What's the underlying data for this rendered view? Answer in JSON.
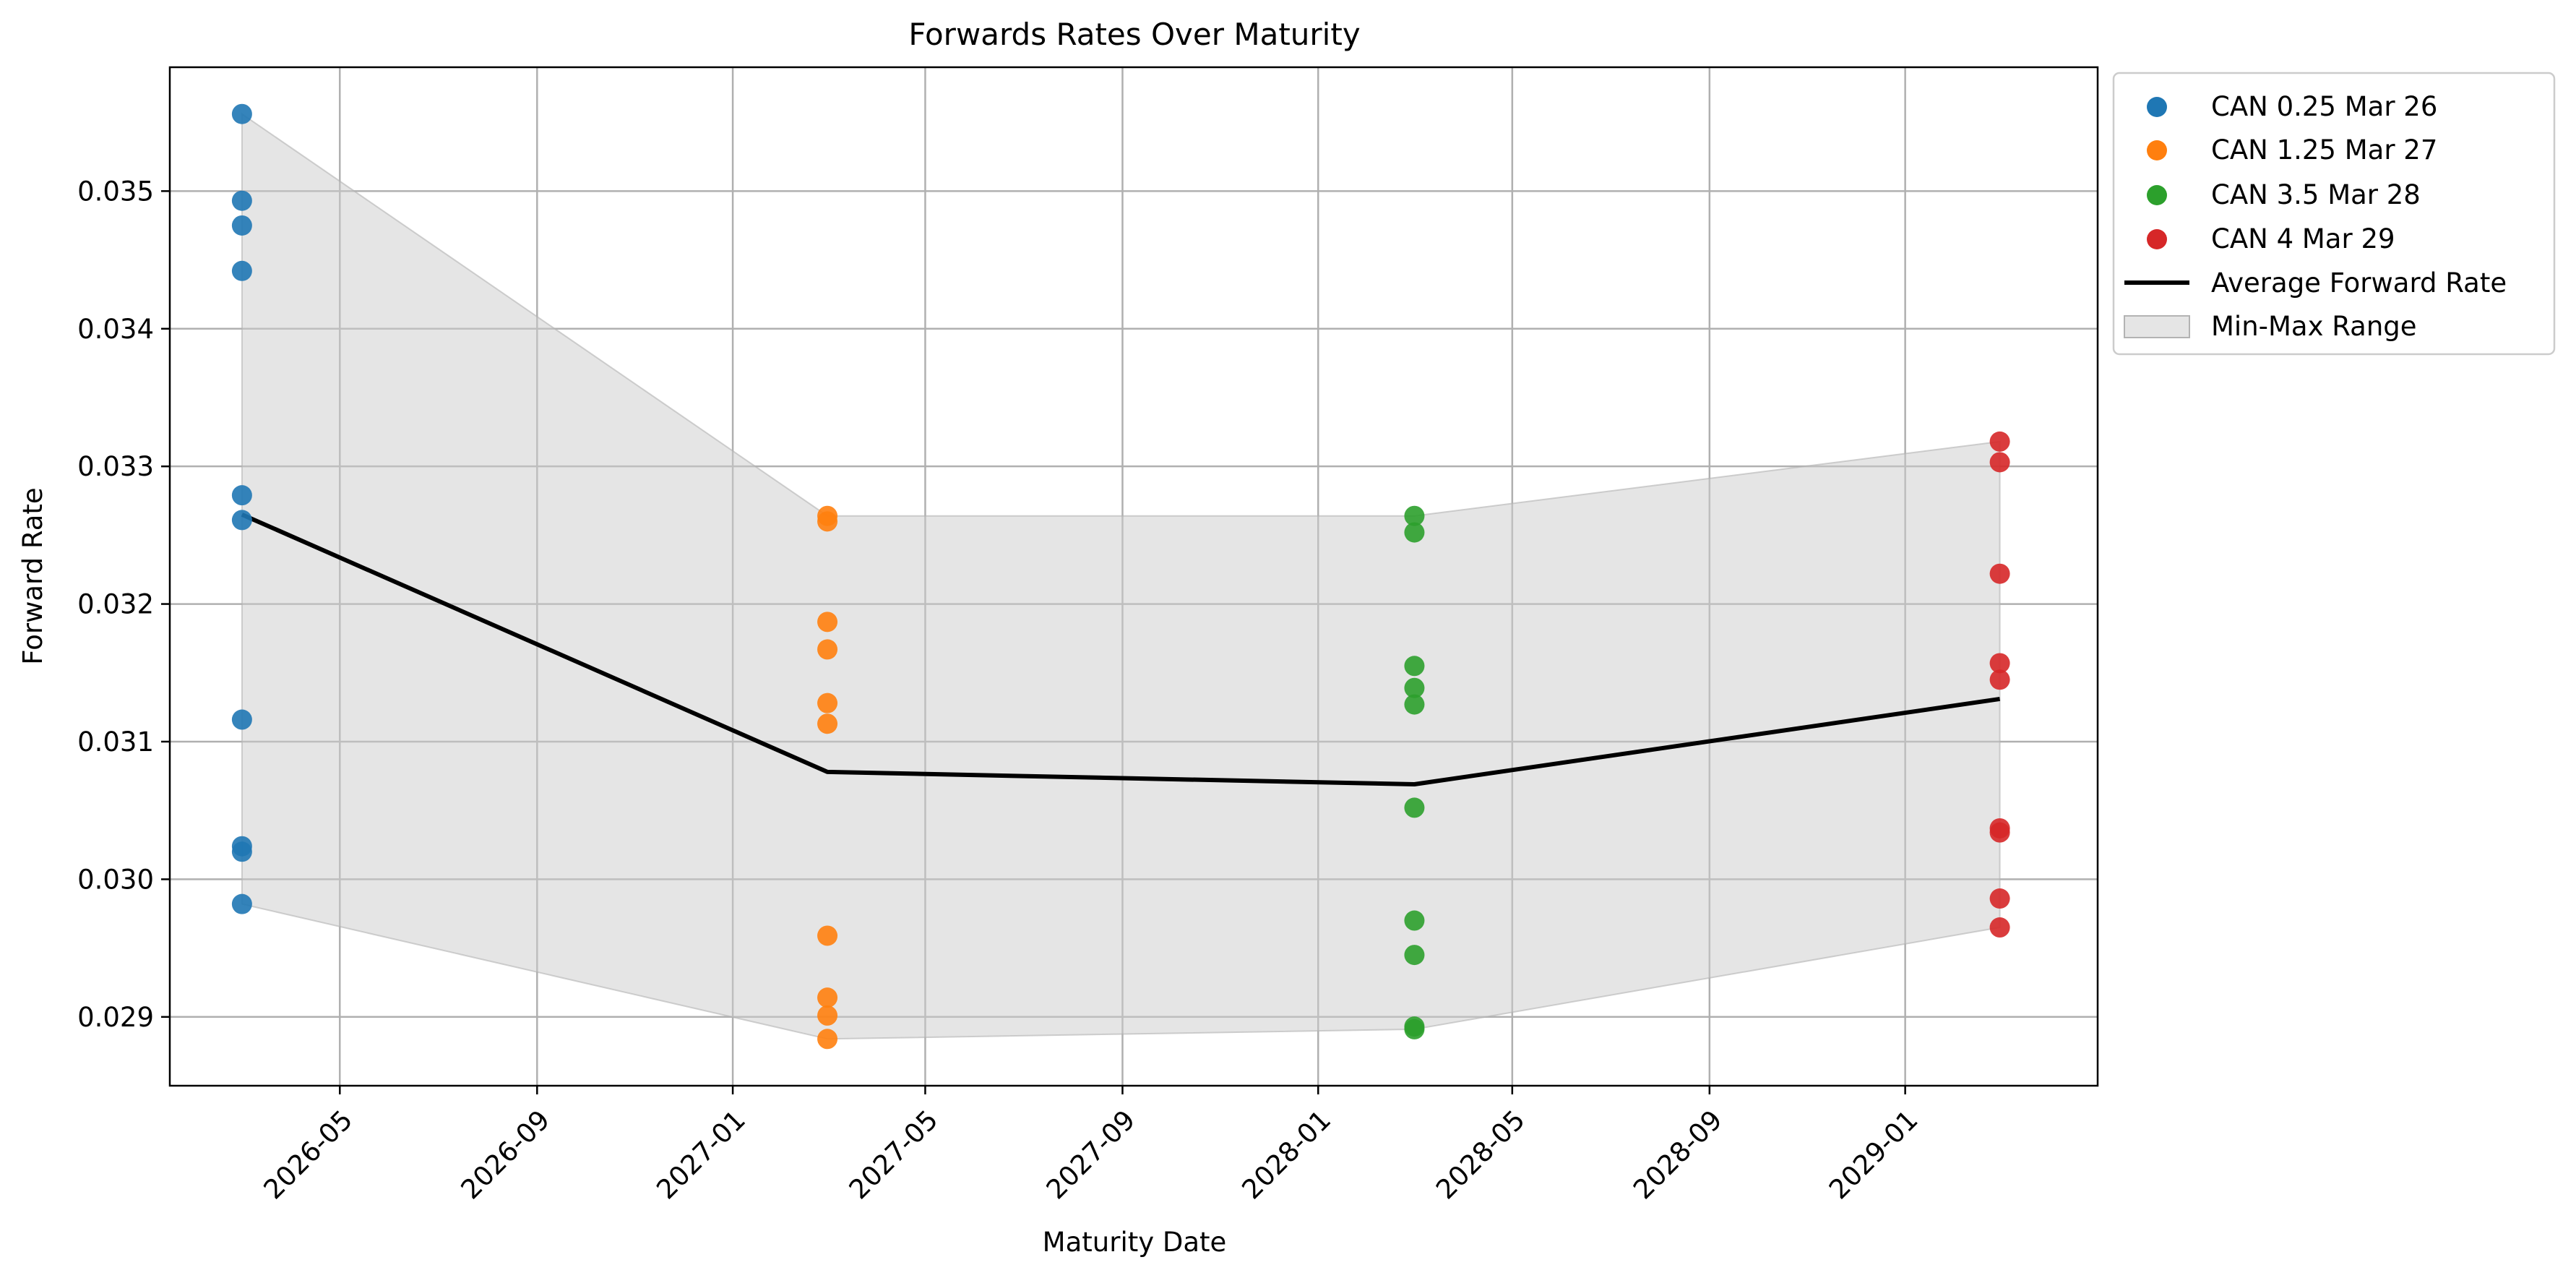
{
  "chart_data": {
    "type": "scatter",
    "title": "Forwards Rates Over Maturity",
    "xlabel": "Maturity Date",
    "ylabel": "Forward Rate",
    "x_type": "date",
    "xlim": [
      "2026-01-15",
      "2029-05-01"
    ],
    "ylim": [
      0.0285,
      0.0359
    ],
    "x_ticks": [
      "2026-05-01",
      "2026-09-01",
      "2027-01-01",
      "2027-05-01",
      "2027-09-01",
      "2028-01-01",
      "2028-05-01",
      "2028-09-01",
      "2029-01-01"
    ],
    "x_tick_labels": [
      "2026-05",
      "2026-09",
      "2027-01",
      "2027-05",
      "2027-09",
      "2028-01",
      "2028-05",
      "2028-09",
      "2029-01"
    ],
    "y_ticks": [
      0.029,
      0.03,
      0.031,
      0.032,
      0.033,
      0.034,
      0.035
    ],
    "y_tick_labels": [
      "0.029",
      "0.030",
      "0.031",
      "0.032",
      "0.033",
      "0.034",
      "0.035"
    ],
    "grid": true,
    "legend_position": "outside-top-right",
    "series": [
      {
        "name": "CAN 0.25 Mar 26",
        "color": "#1f77b4",
        "x": "2026-03-01",
        "values": [
          0.03556,
          0.03493,
          0.03475,
          0.03442,
          0.03279,
          0.03261,
          0.03116,
          0.03024,
          0.0302,
          0.02982
        ]
      },
      {
        "name": "CAN 1.25 Mar 27",
        "color": "#ff7f0e",
        "x": "2027-03-01",
        "values": [
          0.03264,
          0.0326,
          0.03187,
          0.03167,
          0.03128,
          0.03113,
          0.02959,
          0.02914,
          0.02901,
          0.02884
        ]
      },
      {
        "name": "CAN 3.5 Mar 28",
        "color": "#2ca02c",
        "x": "2028-03-01",
        "values": [
          0.03264,
          0.03252,
          0.03155,
          0.03139,
          0.03127,
          0.03052,
          0.0297,
          0.02945,
          0.02893,
          0.02891
        ]
      },
      {
        "name": "CAN 4 Mar 29",
        "color": "#d62728",
        "x": "2029-03-01",
        "values": [
          0.03318,
          0.03303,
          0.03222,
          0.03157,
          0.03145,
          0.03037,
          0.03034,
          0.02986,
          0.02965
        ]
      }
    ],
    "average_line": {
      "name": "Average Forward Rate",
      "color": "#000000",
      "x": [
        "2026-03-01",
        "2027-03-01",
        "2028-03-01",
        "2029-03-01"
      ],
      "values": [
        0.03265,
        0.03078,
        0.03069,
        0.03131
      ]
    },
    "range_band": {
      "name": "Min-Max Range",
      "color": "#cccccc",
      "x": [
        "2026-03-01",
        "2027-03-01",
        "2028-03-01",
        "2029-03-01"
      ],
      "min": [
        0.02982,
        0.02884,
        0.02891,
        0.02965
      ],
      "max": [
        0.03556,
        0.03264,
        0.03264,
        0.03318
      ]
    }
  }
}
